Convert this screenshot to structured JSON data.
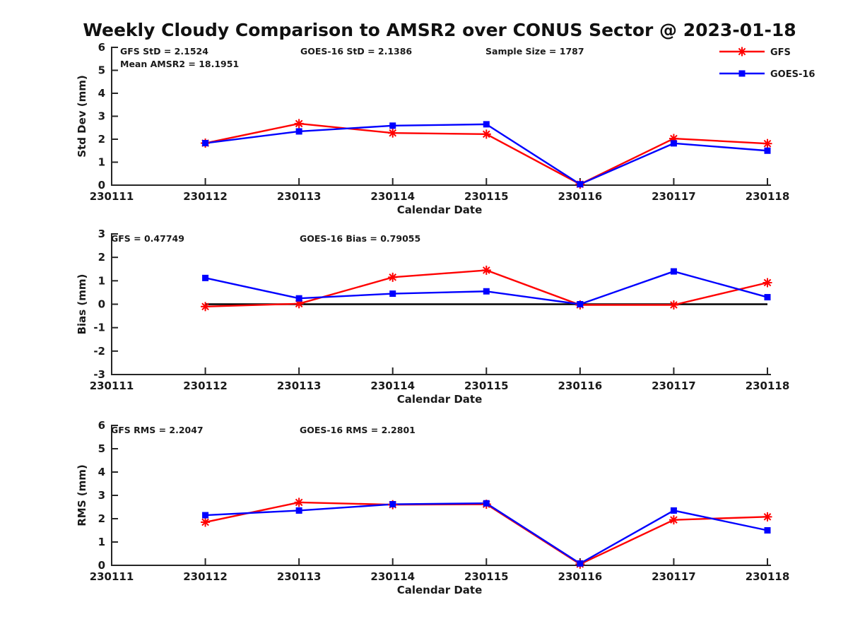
{
  "title": "Weekly Cloudy Comparison to AMSR2 over CONUS Sector @ 2023-01-18",
  "colors": {
    "gfs": "#ff0000",
    "goes16": "#0000ff",
    "axis": "#262626",
    "text": "#1a1a1a",
    "zero_line": "#000000"
  },
  "chart_data": [
    {
      "type": "line",
      "title": "",
      "ylabel": "Std Dev (mm)",
      "xlabel": "Calendar Date",
      "ylim": [
        0,
        6
      ],
      "yticks": [
        0,
        1,
        2,
        3,
        4,
        5,
        6
      ],
      "xticks": [
        "230111",
        "230112",
        "230113",
        "230114",
        "230115",
        "230116",
        "230117",
        "230118"
      ],
      "x": [
        "230112",
        "230113",
        "230114",
        "230115",
        "230116",
        "230117",
        "230118"
      ],
      "grid": false,
      "series": [
        {
          "name": "GFS",
          "color": "#ff0000",
          "marker": "asterisk",
          "values": [
            1.83,
            2.68,
            2.27,
            2.22,
            0.04,
            2.03,
            1.81
          ]
        },
        {
          "name": "GOES-16",
          "color": "#0000ff",
          "marker": "square",
          "values": [
            1.83,
            2.34,
            2.59,
            2.65,
            0.04,
            1.82,
            1.5
          ]
        }
      ],
      "annotations": [
        "GFS StD = 2.1524",
        "Mean AMSR2 = 18.1951",
        "GOES-16 StD = 2.1386",
        "Sample Size = 1787"
      ],
      "legend": {
        "position": "northeast",
        "items": [
          "GFS",
          "GOES-16"
        ]
      }
    },
    {
      "type": "line",
      "title": "",
      "ylabel": "Bias (mm)",
      "xlabel": "Calendar Date",
      "ylim": [
        -3,
        3
      ],
      "yticks": [
        -3,
        -2,
        -1,
        0,
        1,
        2,
        3
      ],
      "xticks": [
        "230111",
        "230112",
        "230113",
        "230114",
        "230115",
        "230116",
        "230117",
        "230118"
      ],
      "x": [
        "230112",
        "230113",
        "230114",
        "230115",
        "230116",
        "230117",
        "230118"
      ],
      "grid": false,
      "zero_line": true,
      "series": [
        {
          "name": "GFS",
          "color": "#ff0000",
          "marker": "asterisk",
          "values": [
            -0.1,
            0.02,
            1.15,
            1.45,
            -0.03,
            -0.03,
            0.92
          ]
        },
        {
          "name": "GOES-16",
          "color": "#0000ff",
          "marker": "square",
          "values": [
            1.12,
            0.25,
            0.45,
            0.55,
            0.0,
            1.4,
            0.3
          ]
        }
      ],
      "annotations": [
        "GFS = 0.47749",
        "GOES-16 Bias  = 0.79055"
      ]
    },
    {
      "type": "line",
      "title": "",
      "ylabel": "RMS (mm)",
      "xlabel": "Calendar Date",
      "ylim": [
        0,
        6
      ],
      "yticks": [
        0,
        1,
        2,
        3,
        4,
        5,
        6
      ],
      "xticks": [
        "230111",
        "230112",
        "230113",
        "230114",
        "230115",
        "230116",
        "230117",
        "230118"
      ],
      "x": [
        "230112",
        "230113",
        "230114",
        "230115",
        "230116",
        "230117",
        "230118"
      ],
      "grid": false,
      "series": [
        {
          "name": "GFS",
          "color": "#ff0000",
          "marker": "asterisk",
          "values": [
            1.85,
            2.7,
            2.6,
            2.62,
            0.05,
            1.95,
            2.08
          ]
        },
        {
          "name": "GOES-16",
          "color": "#0000ff",
          "marker": "square",
          "values": [
            2.15,
            2.35,
            2.62,
            2.66,
            0.08,
            2.35,
            1.5
          ]
        }
      ],
      "annotations": [
        "GFS RMS = 2.2047",
        "GOES-16 RMS = 2.2801"
      ]
    }
  ]
}
